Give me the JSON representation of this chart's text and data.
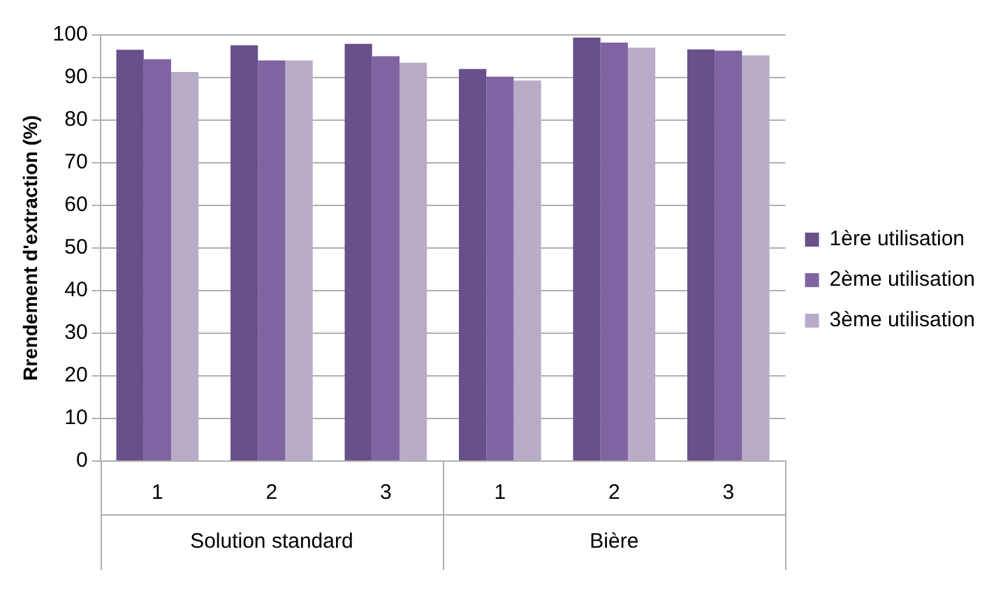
{
  "chart_data": {
    "type": "bar",
    "ylabel": "Rrendement d'extraction (%)",
    "categories": [
      "1",
      "2",
      "3",
      "1",
      "2",
      "3"
    ],
    "series": [
      {
        "name": "1ère utilisation",
        "color": "#68508a",
        "values": [
          96.5,
          97.6,
          97.9,
          92,
          99.4,
          96.6
        ]
      },
      {
        "name": "2ème utilisation",
        "color": "#8064a2",
        "values": [
          94.3,
          94,
          95,
          90.2,
          98.2,
          96.3
        ]
      },
      {
        "name": "3ème utilisation",
        "color": "#b9acc9",
        "values": [
          91.3,
          94,
          93.5,
          89.3,
          97,
          95.2
        ]
      }
    ],
    "annotations": [
      "Solution standard",
      "Bière"
    ],
    "ylim": [
      0,
      100
    ],
    "yticks": [
      0,
      10,
      20,
      30,
      40,
      50,
      60,
      70,
      80,
      90,
      100
    ],
    "grid": "y",
    "legend": "right"
  }
}
